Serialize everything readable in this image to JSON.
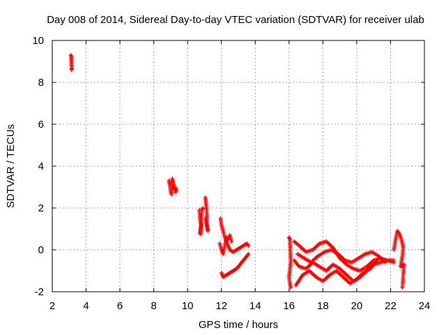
{
  "chart_data": {
    "type": "scatter",
    "title": "Day 008 of 2014, Sidereal Day-to-day VTEC variation (SDTVAR) for receiver ulab",
    "xlabel": "GPS time / hours",
    "ylabel": "SDTVAR / TECUs",
    "xlim": [
      2,
      24
    ],
    "ylim": [
      -2,
      10
    ],
    "x_ticks": [
      2,
      4,
      6,
      8,
      10,
      12,
      14,
      16,
      18,
      20,
      22,
      24
    ],
    "y_ticks": [
      -2,
      0,
      2,
      4,
      6,
      8,
      10
    ],
    "x_tick_labels": [
      "2",
      "4",
      "6",
      "8",
      "10",
      "12",
      "14",
      "16",
      "18",
      "20",
      "22",
      "24"
    ],
    "y_tick_labels": [
      "-2",
      "0",
      "2",
      "4",
      "6",
      "8",
      "10"
    ],
    "grid": true,
    "marker": "plus",
    "color": "#ff0000",
    "segments": [
      {
        "x": [
          3.1,
          3.12,
          3.13,
          3.15,
          3.14,
          3.16
        ],
        "y": [
          9.3,
          9.25,
          9.0,
          8.75,
          8.6,
          8.65
        ]
      },
      {
        "x": [
          8.9,
          8.95,
          9.0,
          9.05,
          9.1,
          9.15,
          9.2,
          9.25,
          9.3,
          9.35
        ],
        "y": [
          3.3,
          3.1,
          2.8,
          2.65,
          3.4,
          3.2,
          2.9,
          3.0,
          2.75,
          2.9
        ]
      },
      {
        "x": [
          10.7,
          10.75,
          10.8,
          10.72,
          10.78,
          10.85,
          10.9
        ],
        "y": [
          1.9,
          1.4,
          1.2,
          0.8,
          0.75,
          1.9,
          2.0
        ]
      },
      {
        "x": [
          11.05,
          11.08,
          11.1,
          11.15,
          11.12,
          11.18,
          11.2,
          11.05
        ],
        "y": [
          2.5,
          2.3,
          2.1,
          1.6,
          1.3,
          1.0,
          0.9,
          1.5
        ]
      },
      {
        "x": [
          11.95,
          12.0,
          12.1,
          12.2,
          12.3,
          12.4,
          12.5,
          12.7,
          12.9,
          13.1,
          13.3,
          13.5,
          13.6
        ],
        "y": [
          1.5,
          1.2,
          0.9,
          0.6,
          0.4,
          0.2,
          0.0,
          -0.1,
          0.0,
          0.1,
          0.2,
          0.3,
          0.2
        ]
      },
      {
        "x": [
          12.0,
          12.1,
          12.3,
          12.5,
          12.7,
          12.9,
          13.1,
          13.3,
          13.5,
          13.6
        ],
        "y": [
          -1.1,
          -1.3,
          -1.2,
          -1.1,
          -1.0,
          -0.9,
          -0.7,
          -0.5,
          -0.3,
          -0.2
        ]
      },
      {
        "x": [
          11.9,
          12.0,
          12.1,
          12.2,
          12.3,
          12.4,
          12.5,
          12.6
        ],
        "y": [
          0.3,
          0.0,
          -0.2,
          0.2,
          0.6,
          0.5,
          0.7,
          0.4
        ]
      },
      {
        "x": [
          16.0,
          16.05,
          16.1,
          16.0,
          16.05,
          16.1
        ],
        "y": [
          0.6,
          0.5,
          -0.6,
          -1.3,
          -1.6,
          -1.8
        ]
      },
      {
        "x": [
          16.3,
          16.6,
          17.0,
          17.4,
          17.8,
          18.2,
          18.6,
          19.0,
          19.4,
          19.8,
          20.2,
          20.6,
          21.0,
          21.4,
          21.8,
          22.2
        ],
        "y": [
          0.4,
          0.2,
          -0.1,
          0.0,
          0.3,
          0.4,
          0.1,
          -0.4,
          -0.7,
          -0.9,
          -1.0,
          -0.8,
          -0.5,
          -0.4,
          -0.5,
          -0.6
        ]
      },
      {
        "x": [
          16.3,
          16.6,
          17.0,
          17.4,
          17.8,
          18.2,
          18.6,
          19.0,
          19.4,
          19.8,
          20.2,
          20.6,
          21.0,
          21.4,
          21.8,
          22.2
        ],
        "y": [
          -0.5,
          -0.8,
          -0.9,
          -0.6,
          -0.8,
          -1.0,
          -0.7,
          -0.9,
          -1.2,
          -1.5,
          -1.3,
          -1.0,
          -0.7,
          -0.6,
          -0.5,
          -0.5
        ]
      },
      {
        "x": [
          16.4,
          16.8,
          17.2,
          17.6,
          18.0,
          18.4,
          18.8,
          19.2,
          19.6,
          20.0,
          20.4,
          20.8,
          21.2
        ],
        "y": [
          -1.7,
          -1.2,
          -1.0,
          -1.3,
          -1.5,
          -1.2,
          -1.0,
          -1.3,
          -1.6,
          -1.4,
          -1.1,
          -0.9,
          -0.5
        ]
      },
      {
        "x": [
          16.5,
          16.9,
          17.3,
          17.7,
          18.1,
          18.5,
          18.9,
          19.3,
          19.7,
          20.1,
          20.5,
          20.9,
          21.3,
          21.7
        ],
        "y": [
          -0.2,
          -0.4,
          -0.6,
          -0.3,
          -0.1,
          0.0,
          -0.2,
          -0.5,
          -0.6,
          -0.4,
          -0.2,
          -0.1,
          -0.3,
          -0.6
        ]
      },
      {
        "x": [
          22.2,
          22.3,
          22.4,
          22.5,
          22.6,
          22.7,
          22.75,
          22.7,
          22.6,
          22.8,
          22.7
        ],
        "y": [
          0.0,
          0.5,
          0.9,
          0.8,
          0.6,
          0.3,
          0.1,
          -0.3,
          -0.8,
          -0.7,
          -1.8
        ]
      }
    ]
  }
}
